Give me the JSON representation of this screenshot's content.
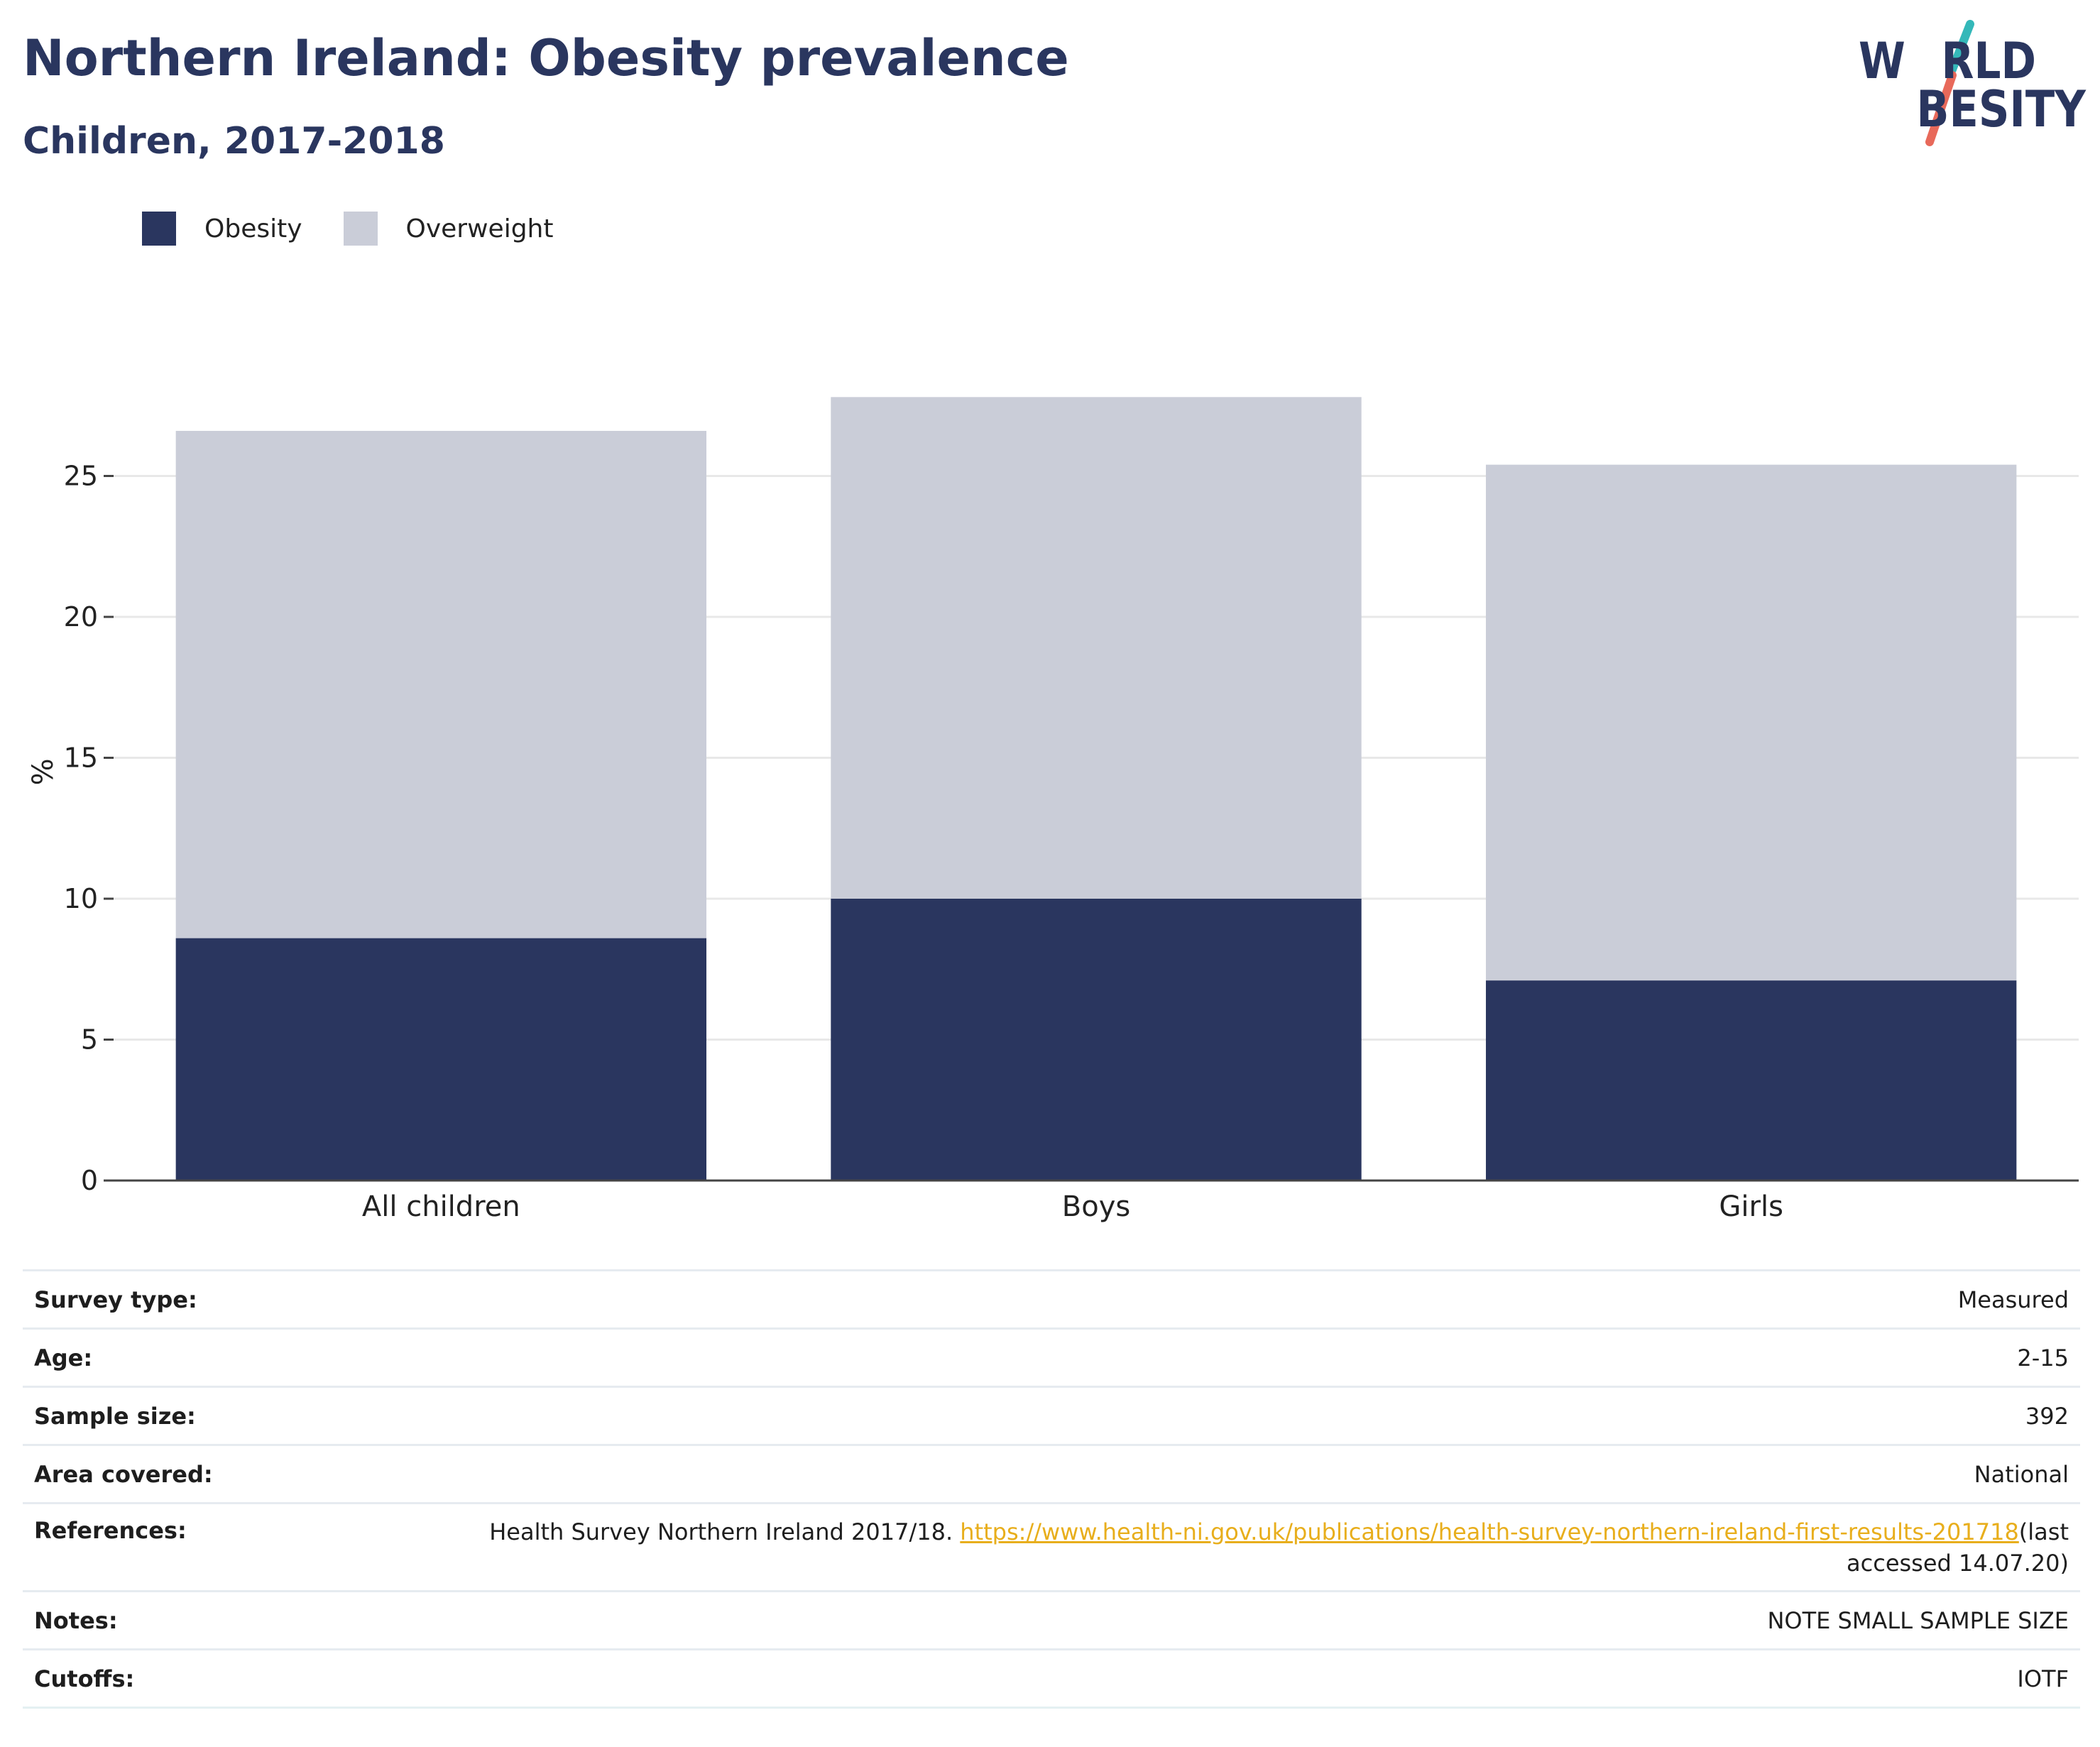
{
  "header": {
    "title": "Northern Ireland: Obesity prevalence",
    "subtitle": "Children, 2017-2018"
  },
  "logo": {
    "line1": "W∕RLD",
    "line2": "∕BESITY",
    "text": "WORLD OBESITY"
  },
  "colors": {
    "obesity": "#2a365f",
    "overweight": "#cacdd8",
    "title": "#2a365f",
    "link": "#e8ae1c",
    "logo_teal": "#34b8b9",
    "logo_coral": "#e8695a"
  },
  "legend": [
    {
      "name": "Obesity",
      "color": "#2a365f"
    },
    {
      "name": "Overweight",
      "color": "#cacdd8"
    }
  ],
  "chart_data": {
    "type": "bar",
    "stacked": true,
    "categories": [
      "All children",
      "Boys",
      "Girls"
    ],
    "series": [
      {
        "name": "Obesity",
        "values": [
          8.6,
          10.0,
          7.1
        ],
        "color": "#2a365f"
      },
      {
        "name": "Overweight",
        "values": [
          18.0,
          17.8,
          18.3
        ],
        "color": "#cacdd8"
      }
    ],
    "xlabel": "",
    "ylabel": "%",
    "ylim": [
      0,
      29
    ],
    "yticks": [
      0,
      5,
      10,
      15,
      20,
      25
    ],
    "grid": true,
    "legend_position": "top-left"
  },
  "details": [
    {
      "label": "Survey type:",
      "value": "Measured"
    },
    {
      "label": "Age:",
      "value": "2-15"
    },
    {
      "label": "Sample size:",
      "value": "392"
    },
    {
      "label": "Area covered:",
      "value": "National"
    },
    {
      "label": "References:",
      "value": "Health Survey Northern Ireland 2017/18. ",
      "link_text": "https://www.health-ni.gov.uk/publications/health-survey-northern-ireland-first-results-201718",
      "suffix": "(last accessed 14.07.20)"
    },
    {
      "label": "Notes:",
      "value": "NOTE SMALL SAMPLE SIZE"
    },
    {
      "label": "Cutoffs:",
      "value": "IOTF"
    }
  ]
}
